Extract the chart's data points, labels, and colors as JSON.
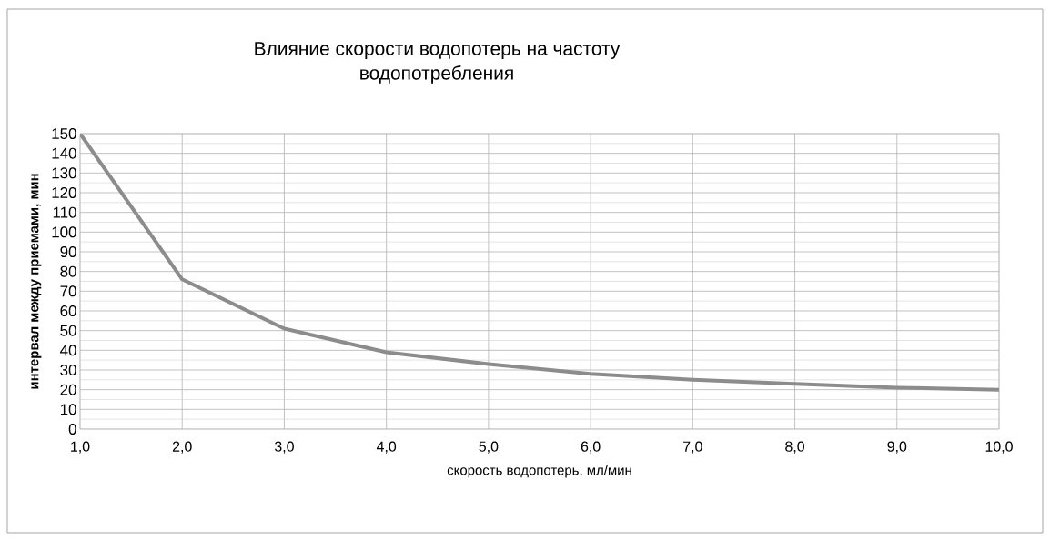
{
  "chart_data": {
    "type": "line",
    "title": "Влияние скорости водопотерь на частоту водопотребления",
    "xlabel": "скорость водопотерь, мл/мин",
    "ylabel": "интервал между приемами, мин",
    "categories": [
      "1,0",
      "2,0",
      "3,0",
      "4,0",
      "5,0",
      "6,0",
      "7,0",
      "8,0",
      "9,0",
      "10,0"
    ],
    "values": [
      150,
      76,
      51,
      39,
      33,
      28,
      25,
      23,
      21,
      20
    ],
    "color": "#8c8c8c",
    "ylim": [
      0,
      150
    ],
    "yticks": [
      0,
      10,
      20,
      30,
      40,
      50,
      60,
      70,
      80,
      90,
      100,
      110,
      120,
      130,
      140,
      150
    ],
    "grid": true,
    "marker": "none",
    "line_style": "solid"
  }
}
